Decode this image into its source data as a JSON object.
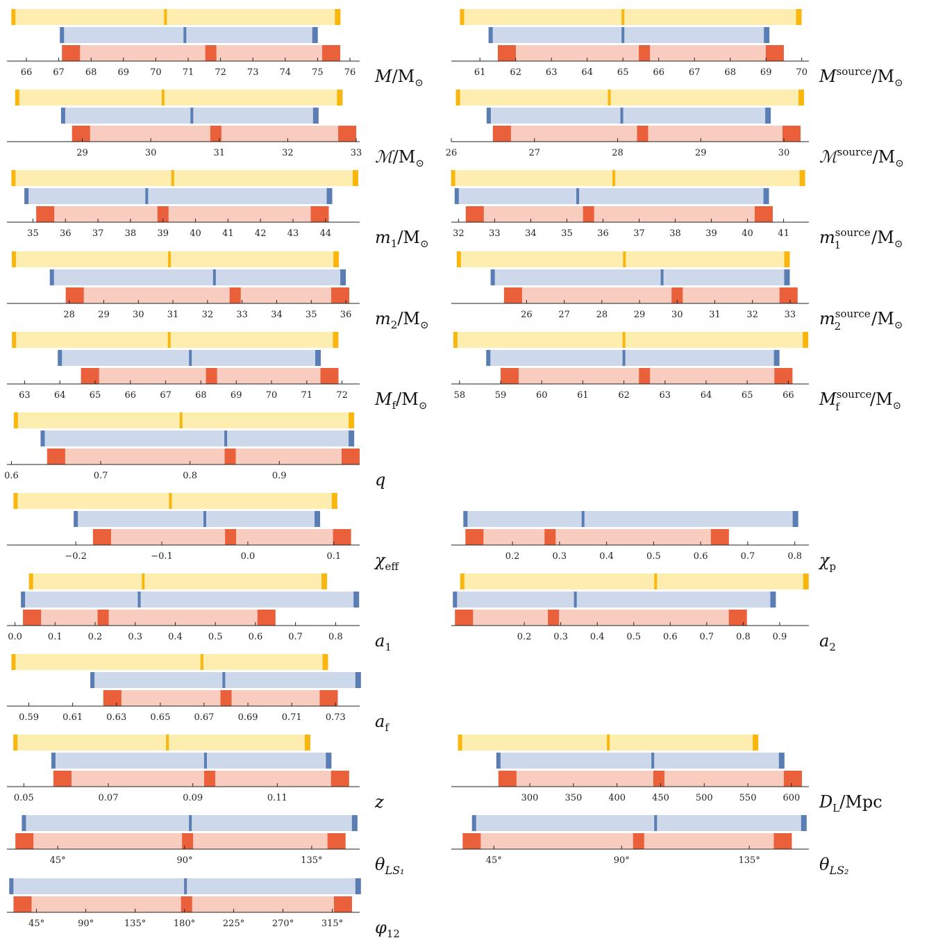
{
  "colors": {
    "yellow_band": "#fdeeb0",
    "yellow_mark": "#f9b60f",
    "blue_band": "#cdd8ea",
    "blue_mark": "#5a7db4",
    "red_band": "#f9ccc0",
    "red_mark": "#e9603a",
    "axis": "#222222"
  },
  "chart_data": [
    {
      "type": "interval",
      "param": "M",
      "label": "M/M⊙",
      "ticks": [
        66,
        67,
        68,
        69,
        70,
        71,
        72,
        73,
        74,
        75,
        76
      ],
      "tick_labels": [
        "66",
        "67",
        "68",
        "69",
        "70",
        "71",
        "72",
        "73",
        "74",
        "75",
        "76"
      ],
      "xlim": [
        65.4,
        76.3
      ],
      "yellow": [
        65.6,
        70.3,
        75.6
      ],
      "blue": [
        67.1,
        70.9,
        74.9
      ],
      "red": [
        67.1,
        71.7,
        75.7
      ]
    },
    {
      "type": "interval",
      "param": "M_source",
      "label": "M^source/M⊙",
      "ticks": [
        61,
        62,
        63,
        64,
        65,
        66,
        67,
        68,
        69,
        70
      ],
      "tick_labels": [
        "61",
        "62",
        "63",
        "64",
        "65",
        "66",
        "67",
        "68",
        "69",
        "70"
      ],
      "xlim": [
        60.2,
        70.2
      ],
      "yellow": [
        60.5,
        65.0,
        69.9
      ],
      "blue": [
        61.3,
        65.0,
        69.0
      ],
      "red": [
        61.5,
        65.6,
        69.5
      ]
    },
    {
      "type": "interval",
      "param": "chirp",
      "label": "ℳ/M⊙",
      "ticks": [
        29,
        30,
        31,
        32,
        33
      ],
      "tick_labels": [
        "29",
        "30",
        "31",
        "32",
        "33"
      ],
      "xlim": [
        27.9,
        33.05
      ],
      "yellow": [
        28.05,
        30.18,
        32.75
      ],
      "blue": [
        28.72,
        30.6,
        32.4
      ],
      "red": [
        28.85,
        30.95,
        33.0
      ]
    },
    {
      "type": "interval",
      "param": "chirp_source",
      "label": "ℳ^source/M⊙",
      "ticks": [
        26,
        27,
        28,
        29,
        30
      ],
      "tick_labels": [
        "26",
        "27",
        "28",
        "29",
        "30"
      ],
      "xlim": [
        26.0,
        30.3
      ],
      "yellow": [
        26.08,
        27.9,
        30.2
      ],
      "blue": [
        26.45,
        28.05,
        29.8
      ],
      "red": [
        26.5,
        28.3,
        30.2
      ]
    },
    {
      "type": "interval",
      "param": "m1",
      "label": "m₁/M⊙",
      "ticks": [
        35,
        36,
        37,
        38,
        39,
        40,
        41,
        42,
        43,
        44
      ],
      "tick_labels": [
        "35",
        "36",
        "37",
        "38",
        "39",
        "40",
        "41",
        "42",
        "43",
        "44"
      ],
      "xlim": [
        34.2,
        45.05
      ],
      "yellow": [
        34.4,
        39.3,
        44.9
      ],
      "blue": [
        34.8,
        38.5,
        44.1
      ],
      "red": [
        35.1,
        39.0,
        44.1
      ]
    },
    {
      "type": "interval",
      "param": "m1_source",
      "label": "m₁^source/M⊙",
      "ticks": [
        32,
        33,
        34,
        35,
        36,
        37,
        38,
        39,
        40,
        41
      ],
      "tick_labels": [
        "32",
        "33",
        "34",
        "35",
        "36",
        "37",
        "38",
        "39",
        "40",
        "41"
      ],
      "xlim": [
        31.8,
        41.7
      ],
      "yellow": [
        31.85,
        36.3,
        41.5
      ],
      "blue": [
        31.95,
        35.3,
        40.5
      ],
      "red": [
        32.2,
        35.6,
        40.7
      ]
    },
    {
      "type": "interval",
      "param": "m2",
      "label": "m₂/M⊙",
      "ticks": [
        28,
        29,
        30,
        31,
        32,
        33,
        34,
        35,
        36
      ],
      "tick_labels": [
        "28",
        "29",
        "30",
        "31",
        "32",
        "33",
        "34",
        "35",
        "36"
      ],
      "xlim": [
        26.2,
        36.4
      ],
      "yellow": [
        26.4,
        30.9,
        35.7
      ],
      "blue": [
        27.5,
        32.2,
        35.9
      ],
      "red": [
        27.9,
        32.8,
        36.1
      ]
    },
    {
      "type": "interval",
      "param": "m2_source",
      "label": "m₂^source/M⊙",
      "ticks": [
        26,
        27,
        28,
        29,
        30,
        31,
        32,
        33
      ],
      "tick_labels": [
        "26",
        "27",
        "28",
        "29",
        "30",
        "31",
        "32",
        "33"
      ],
      "xlim": [
        24.0,
        33.5
      ],
      "yellow": [
        24.2,
        28.6,
        32.9
      ],
      "blue": [
        25.1,
        29.6,
        32.9
      ],
      "red": [
        25.4,
        30.0,
        33.2
      ]
    },
    {
      "type": "interval",
      "param": "Mf",
      "label": "M_f/M⊙",
      "ticks": [
        63,
        64,
        65,
        66,
        67,
        68,
        69,
        70,
        71,
        72
      ],
      "tick_labels": [
        "63",
        "64",
        "65",
        "66",
        "67",
        "68",
        "69",
        "70",
        "71",
        "72"
      ],
      "xlim": [
        62.5,
        72.5
      ],
      "yellow": [
        62.7,
        67.1,
        71.8
      ],
      "blue": [
        64.0,
        67.7,
        71.3
      ],
      "red": [
        64.6,
        68.3,
        71.9
      ]
    },
    {
      "type": "interval",
      "param": "Mf_source",
      "label": "M_f^source/M⊙",
      "ticks": [
        58,
        59,
        60,
        61,
        62,
        63,
        64,
        65,
        66
      ],
      "tick_labels": [
        "58",
        "59",
        "60",
        "61",
        "62",
        "63",
        "64",
        "65",
        "66"
      ],
      "xlim": [
        57.8,
        66.5
      ],
      "yellow": [
        57.9,
        62.0,
        66.4
      ],
      "blue": [
        58.7,
        62.0,
        65.7
      ],
      "red": [
        59.0,
        62.5,
        66.1
      ]
    },
    {
      "type": "interval",
      "param": "q",
      "label": "q",
      "ticks": [
        0.6,
        0.7,
        0.8,
        0.9
      ],
      "tick_labels": [
        "0.6",
        "0.7",
        "0.8",
        "0.9"
      ],
      "xlim": [
        0.595,
        0.99
      ],
      "yellow": [
        0.605,
        0.79,
        0.98
      ],
      "blue": [
        0.635,
        0.84,
        0.98
      ],
      "red": [
        0.64,
        0.845,
        0.99
      ]
    },
    {
      "type": "interval",
      "param": "chi_eff",
      "label": "χ_eff",
      "ticks": [
        -0.2,
        -0.1,
        0.0,
        0.1
      ],
      "tick_labels": [
        "−0.2",
        "−0.1",
        "0.0",
        "0.1"
      ],
      "xlim": [
        -0.28,
        0.13
      ],
      "yellow": [
        -0.27,
        -0.09,
        0.1
      ],
      "blue": [
        -0.2,
        -0.05,
        0.08
      ],
      "red": [
        -0.18,
        -0.02,
        0.12
      ]
    },
    {
      "type": "interval",
      "param": "chi_p",
      "label": "χ_p",
      "ticks": [
        0.2,
        0.3,
        0.4,
        0.5,
        0.6,
        0.7,
        0.8
      ],
      "tick_labels": [
        "0.2",
        "0.3",
        "0.4",
        "0.5",
        "0.6",
        "0.7",
        "0.8"
      ],
      "xlim": [
        0.07,
        0.83
      ],
      "yellow": null,
      "blue": [
        0.1,
        0.35,
        0.8
      ],
      "red": [
        0.1,
        0.28,
        0.66
      ]
    },
    {
      "type": "interval",
      "param": "a1",
      "label": "a₁",
      "ticks": [
        0.0,
        0.1,
        0.2,
        0.3,
        0.4,
        0.5,
        0.6,
        0.7,
        0.8
      ],
      "tick_labels": [
        "0.0",
        "0.1",
        "0.2",
        "0.3",
        "0.4",
        "0.5",
        "0.6",
        "0.7",
        "0.8"
      ],
      "xlim": [
        -0.02,
        0.86
      ],
      "yellow": [
        0.04,
        0.32,
        0.77
      ],
      "blue": [
        0.02,
        0.31,
        0.85
      ],
      "red": [
        0.02,
        0.22,
        0.65
      ]
    },
    {
      "type": "interval",
      "param": "a2",
      "label": "a₂",
      "ticks": [
        0.2,
        0.3,
        0.4,
        0.5,
        0.6,
        0.7,
        0.8,
        0.9
      ],
      "tick_labels": [
        "0.2",
        "0.3",
        "0.4",
        "0.5",
        "0.6",
        "0.7",
        "0.8",
        "0.9"
      ],
      "xlim": [
        0.0,
        0.98
      ],
      "yellow": [
        0.03,
        0.56,
        0.97
      ],
      "blue": [
        0.01,
        0.34,
        0.88
      ],
      "red": [
        0.01,
        0.28,
        0.81
      ]
    },
    {
      "type": "interval",
      "param": "af",
      "label": "a_f",
      "ticks": [
        0.59,
        0.61,
        0.63,
        0.65,
        0.67,
        0.69,
        0.71,
        0.73
      ],
      "tick_labels": [
        "0.59",
        "0.61",
        "0.63",
        "0.65",
        "0.67",
        "0.69",
        "0.71",
        "0.73"
      ],
      "xlim": [
        0.58,
        0.741
      ],
      "yellow": [
        0.583,
        0.669,
        0.725
      ],
      "blue": [
        0.619,
        0.679,
        0.74
      ],
      "red": [
        0.624,
        0.68,
        0.731
      ]
    },
    {
      "type": "interval",
      "param": "z",
      "label": "z",
      "ticks": [
        0.05,
        0.07,
        0.09,
        0.11
      ],
      "tick_labels": [
        "0.05",
        "0.07",
        "0.09",
        "0.11"
      ],
      "xlim": [
        0.046,
        0.1295
      ],
      "yellow": [
        0.048,
        0.084,
        0.117
      ],
      "blue": [
        0.057,
        0.093,
        0.122
      ],
      "red": [
        0.057,
        0.094,
        0.127
      ]
    },
    {
      "type": "interval",
      "param": "DL",
      "label": "D_L/Mpc",
      "ticks": [
        300,
        350,
        400,
        450,
        500,
        550,
        600
      ],
      "tick_labels": [
        "300",
        "350",
        "400",
        "450",
        "500",
        "550",
        "600"
      ],
      "xlim": [
        210,
        620
      ],
      "yellow": [
        220,
        390,
        558
      ],
      "blue": [
        264,
        441,
        588
      ],
      "red": [
        264,
        448,
        612
      ]
    },
    {
      "type": "interval",
      "param": "theta_LS1",
      "label": "θ_LS₁",
      "ticks": [
        45,
        90,
        135
      ],
      "tick_labels": [
        "45°",
        "90°",
        "135°"
      ],
      "xlim": [
        27,
        152
      ],
      "yellow": null,
      "blue": [
        33,
        92,
        150
      ],
      "red": [
        30,
        91,
        147
      ]
    },
    {
      "type": "interval",
      "param": "theta_LS2",
      "label": "θ_LS₂",
      "ticks": [
        45,
        90,
        135
      ],
      "tick_labels": [
        "45°",
        "90°",
        "135°"
      ],
      "xlim": [
        30,
        156
      ],
      "yellow": null,
      "blue": [
        38,
        102,
        154
      ],
      "red": [
        34,
        96,
        150
      ]
    },
    {
      "type": "interval",
      "param": "phi12",
      "label": "φ₁₂",
      "ticks": [
        45,
        90,
        135,
        180,
        225,
        270,
        315
      ],
      "tick_labels": [
        "45°",
        "90°",
        "135°",
        "180°",
        "225°",
        "270°",
        "315°"
      ],
      "xlim": [
        18,
        340
      ],
      "yellow": null,
      "blue": [
        22,
        181,
        338
      ],
      "red": [
        24,
        182,
        333
      ]
    }
  ],
  "labels": [
    {
      "text": "M/M",
      "sub": "",
      "sup": "",
      "suffix": "⊙"
    },
    {
      "text": "M",
      "sup": "source",
      "suffix": "/M⊙"
    }
  ]
}
